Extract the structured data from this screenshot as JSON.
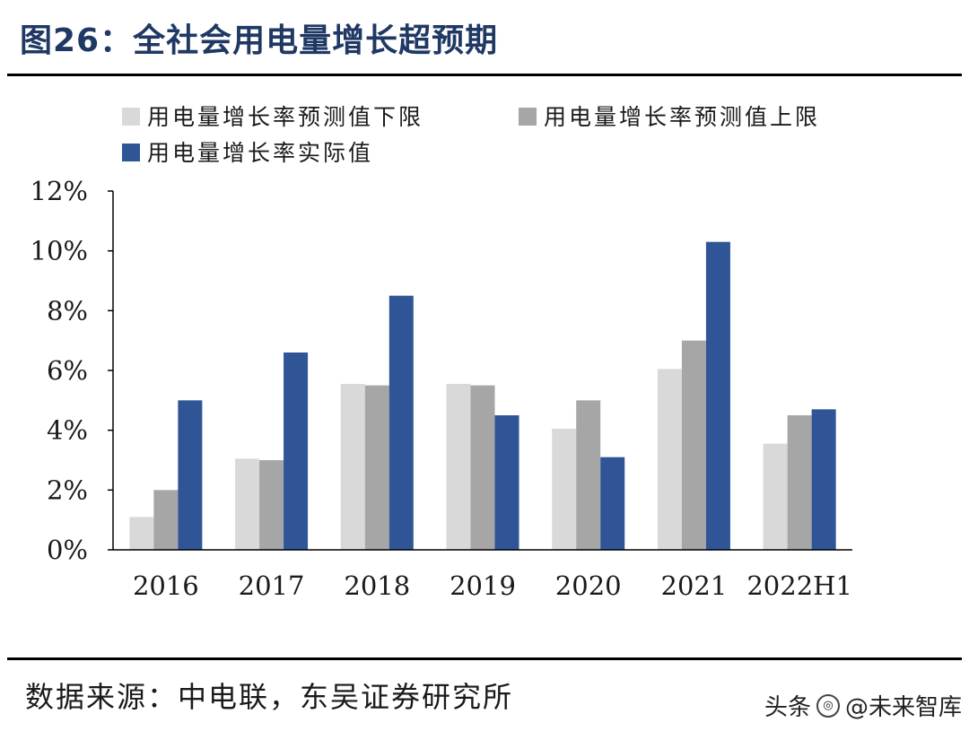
{
  "figure": {
    "title": "图26：全社会用电量增长超预期",
    "source": "数据来源：中电联，东吴证券研究所"
  },
  "watermark": {
    "platform": "头条",
    "handle": "@未来智库"
  },
  "chart_data": {
    "type": "bar",
    "title": "",
    "xlabel": "",
    "ylabel": "",
    "categories": [
      "2016",
      "2017",
      "2018",
      "2019",
      "2020",
      "2021",
      "2022H1"
    ],
    "ylim": [
      0,
      12
    ],
    "y_unit": "%",
    "y_ticks": [
      0,
      2,
      4,
      6,
      8,
      10,
      12
    ],
    "y_tick_labels": [
      "0%",
      "2%",
      "4%",
      "6%",
      "8%",
      "10%",
      "12%"
    ],
    "grid": false,
    "legend_position": "top-left",
    "series": [
      {
        "name": "用电量增长率预测值下限",
        "color": "#d9d9d9",
        "values": [
          1.1,
          3.05,
          5.55,
          5.55,
          4.05,
          6.05,
          3.55
        ]
      },
      {
        "name": "用电量增长率预测值上限",
        "color": "#a6a6a6",
        "values": [
          2.0,
          3.0,
          5.5,
          5.5,
          5.0,
          7.0,
          4.5
        ]
      },
      {
        "name": "用电量增长率实际值",
        "color": "#2f5597",
        "values": [
          5.0,
          6.6,
          8.5,
          4.5,
          3.1,
          10.3,
          4.7
        ]
      }
    ]
  }
}
